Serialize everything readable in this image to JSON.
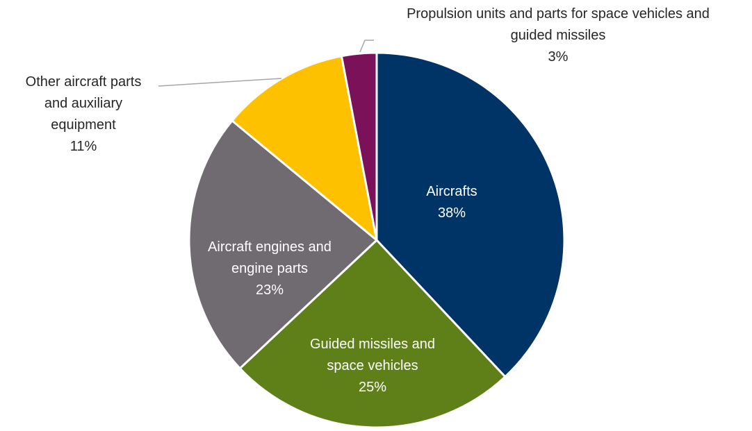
{
  "chart_data": {
    "type": "pie",
    "title": "",
    "slices": [
      {
        "name": [
          "Aircrafts"
        ],
        "value": 38,
        "value_label": "38%",
        "color": "#003366",
        "label_color": "#ffffff",
        "label_pos": "inside"
      },
      {
        "name": [
          "Guided missiles and",
          "space vehicles"
        ],
        "value": 25,
        "value_label": "25%",
        "color": "#5F8018",
        "label_color": "#ffffff",
        "label_pos": "inside"
      },
      {
        "name": [
          "Aircraft engines and",
          "engine parts"
        ],
        "value": 23,
        "value_label": "23%",
        "color": "#706B70",
        "label_color": "#ffffff",
        "label_pos": "inside"
      },
      {
        "name": [
          "Other aircraft parts",
          "and auxiliary",
          "equipment"
        ],
        "value": 11,
        "value_label": "11%",
        "color": "#FDC100",
        "label_color": "#262626",
        "label_pos": "outside-left"
      },
      {
        "name": [
          "Propulsion units and parts for space vehicles and",
          "guided missiles"
        ],
        "value": 3,
        "value_label": "3%",
        "color": "#7B1159",
        "label_color": "#262626",
        "label_pos": "outside-top"
      }
    ],
    "start_angle_deg": 0,
    "direction": "clockwise",
    "legend": "none"
  }
}
